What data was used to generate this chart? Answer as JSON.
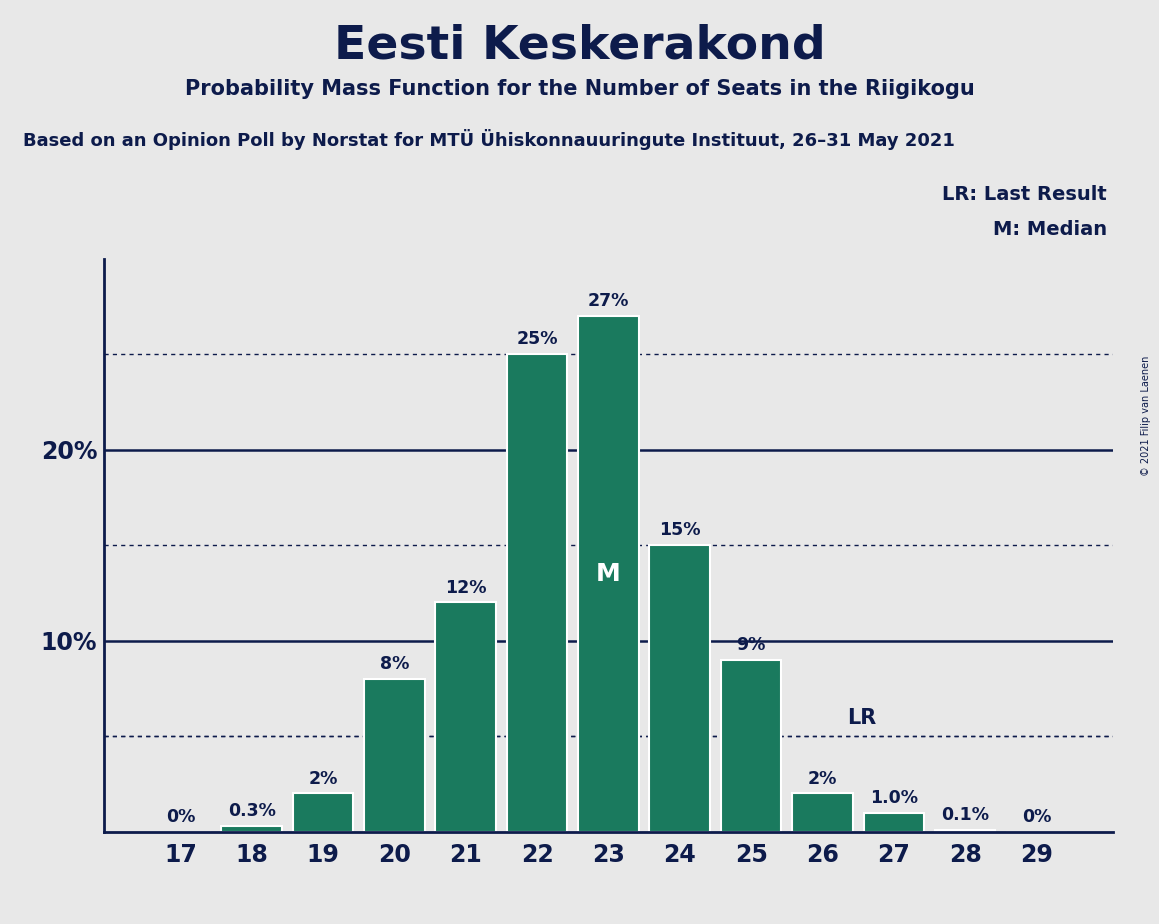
{
  "title": "Eesti Keskerakond",
  "subtitle": "Probability Mass Function for the Number of Seats in the Riigikogu",
  "source": "Based on an Opinion Poll by Norstat for MTÜ Ühiskonnauuringute Instituut, 26–31 May 2021",
  "copyright": "© 2021 Filip van Laenen",
  "categories": [
    17,
    18,
    19,
    20,
    21,
    22,
    23,
    24,
    25,
    26,
    27,
    28,
    29
  ],
  "values": [
    0.0,
    0.3,
    2.0,
    8.0,
    12.0,
    25.0,
    27.0,
    15.0,
    9.0,
    2.0,
    1.0,
    0.1,
    0.0
  ],
  "bar_color": "#1a7a5e",
  "background_color": "#e8e8e8",
  "text_color": "#0d1b4b",
  "median_seat": 23,
  "last_result_seat": 26,
  "last_result_value": 5.0,
  "ylim": [
    0,
    30
  ],
  "solid_lines": [
    10,
    20
  ],
  "dotted_lines": [
    5,
    15,
    25
  ],
  "bar_labels": [
    "0%",
    "0.3%",
    "2%",
    "8%",
    "12%",
    "25%",
    "27%",
    "15%",
    "9%",
    "2%",
    "1.0%",
    "0.1%",
    "0%"
  ]
}
